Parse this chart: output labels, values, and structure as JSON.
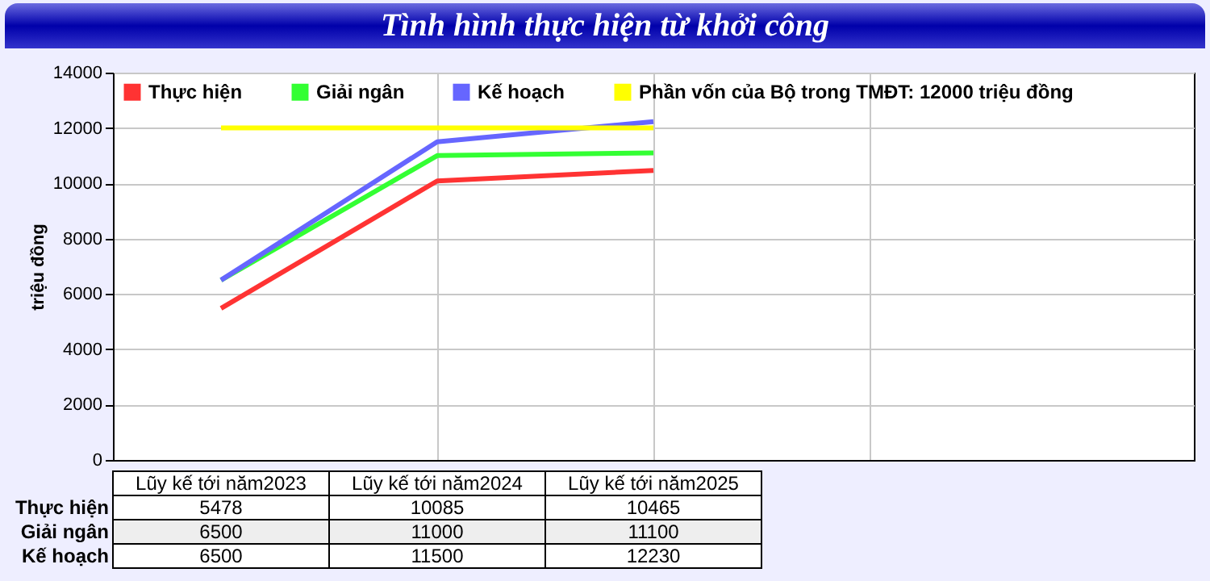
{
  "chart_data": {
    "type": "line",
    "title": "Tình hình thực hiện từ khởi công",
    "ylabel": "triệu đồng",
    "categories": [
      "Lũy kế tới năm2023",
      "Lũy kế tới năm2024",
      "Lũy kế tới năm2025",
      null,
      null
    ],
    "series": [
      {
        "name": "Thực hiện",
        "color": "#ff3333",
        "values": [
          5478,
          10085,
          10465,
          null,
          null
        ],
        "value_labels": [
          "5478",
          "10085",
          "10465",
          null,
          null
        ]
      },
      {
        "name": "Giải ngân",
        "color": "#33ff33",
        "values": [
          6500,
          11000,
          11100,
          null,
          null
        ],
        "value_labels": [
          "6500",
          "11000",
          "11100",
          null,
          null
        ]
      },
      {
        "name": "Kế hoạch",
        "color": "#6666ff",
        "values": [
          6500,
          11500,
          12230,
          null,
          null
        ],
        "value_labels": [
          "6500",
          "11500",
          "12230",
          null,
          null
        ]
      },
      {
        "name": "Phần vốn của Bộ trong TMĐT: 12000 triệu đồng",
        "color": "#ffff00",
        "values": [
          12000,
          12000,
          12000,
          null,
          null
        ]
      }
    ],
    "ylim": [
      0,
      14000
    ],
    "yticks": [
      0,
      2000,
      4000,
      6000,
      8000,
      10000,
      12000,
      14000
    ],
    "grid": true,
    "legend": "top left",
    "marker": "none",
    "line_style": "solid"
  }
}
